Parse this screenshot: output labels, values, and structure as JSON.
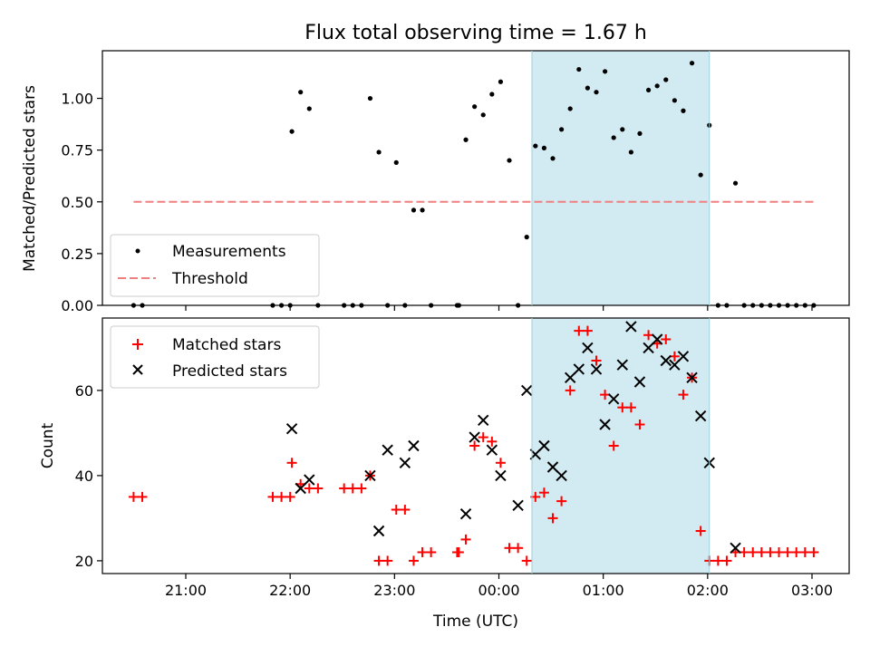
{
  "chart_data": [
    {
      "type": "scatter",
      "title": "Flux total observing time = 1.67 h",
      "xlabel": "",
      "ylabel": "Matched/Predicted stars",
      "ylim": [
        0,
        1.23
      ],
      "yticks": [
        "0.00",
        "0.25",
        "0.50",
        "0.75",
        "1.00"
      ],
      "ytick_values": [
        0,
        0.25,
        0.5,
        0.75,
        1.0
      ],
      "legend_placement": "lower-left",
      "shaded_region": {
        "start": "00:19",
        "end": "02:01",
        "color": "#add8e6"
      },
      "series": [
        {
          "name": "Measurements",
          "marker": "dot",
          "color": "#000000",
          "x": [
            "20:30",
            "20:35",
            "21:50",
            "21:55",
            "22:00",
            "22:01",
            "22:06",
            "22:11",
            "22:16",
            "22:31",
            "22:36",
            "22:41",
            "22:46",
            "22:51",
            "22:56",
            "23:01",
            "23:06",
            "23:11",
            "23:16",
            "23:21",
            "23:36",
            "23:37",
            "23:41",
            "23:46",
            "23:51",
            "23:56",
            "00:01",
            "00:06",
            "00:11",
            "00:16",
            "00:21",
            "00:26",
            "00:31",
            "00:36",
            "00:41",
            "00:46",
            "00:51",
            "00:56",
            "01:01",
            "01:06",
            "01:11",
            "01:16",
            "01:21",
            "01:26",
            "01:31",
            "01:36",
            "01:41",
            "01:46",
            "01:51",
            "01:56",
            "02:01",
            "02:06",
            "02:11",
            "02:16",
            "02:21",
            "02:26",
            "02:31",
            "02:36",
            "02:41",
            "02:46",
            "02:51",
            "02:56",
            "03:01"
          ],
          "y": [
            0,
            0,
            0,
            0,
            0,
            0.84,
            1.03,
            0.95,
            0,
            0,
            0,
            0,
            1.0,
            0.74,
            0,
            0.69,
            0,
            0.46,
            0.46,
            0,
            0,
            0,
            0.8,
            0.96,
            0.92,
            1.02,
            1.08,
            0.7,
            0,
            0.33,
            0.77,
            0.76,
            0.71,
            0.85,
            0.95,
            1.14,
            1.05,
            1.03,
            1.13,
            0.81,
            0.85,
            0.74,
            0.83,
            1.04,
            1.06,
            1.09,
            0.99,
            0.94,
            1.17,
            0.63,
            0.87,
            0,
            0,
            0.59,
            0,
            0,
            0,
            0,
            0,
            0,
            0,
            0,
            0
          ]
        },
        {
          "name": "Threshold",
          "style": "dashed",
          "color": "#f08080",
          "x": [
            "20:30",
            "03:01"
          ],
          "y": [
            0.5,
            0.5
          ]
        }
      ]
    },
    {
      "type": "scatter",
      "title": "",
      "xlabel": "Time (UTC)",
      "ylabel": "Count",
      "ylim": [
        17,
        77
      ],
      "yticks": [
        "20",
        "40",
        "60"
      ],
      "ytick_values": [
        20,
        40,
        60
      ],
      "xticks": [
        "21:00",
        "22:00",
        "23:00",
        "00:00",
        "01:00",
        "02:00",
        "03:00"
      ],
      "legend_placement": "top-left",
      "shaded_region": {
        "start": "00:19",
        "end": "02:01",
        "color": "#add8e6"
      },
      "series": [
        {
          "name": "Matched stars",
          "marker": "plus",
          "color": "#ff0000",
          "x": [
            "20:30",
            "20:35",
            "21:50",
            "21:55",
            "22:00",
            "22:01",
            "22:06",
            "22:11",
            "22:16",
            "22:31",
            "22:36",
            "22:41",
            "22:46",
            "22:51",
            "22:56",
            "23:01",
            "23:06",
            "23:11",
            "23:16",
            "23:21",
            "23:36",
            "23:37",
            "23:41",
            "23:46",
            "23:51",
            "23:56",
            "00:01",
            "00:06",
            "00:11",
            "00:16",
            "00:21",
            "00:26",
            "00:31",
            "00:36",
            "00:41",
            "00:46",
            "00:51",
            "00:56",
            "01:01",
            "01:06",
            "01:11",
            "01:16",
            "01:21",
            "01:26",
            "01:31",
            "01:36",
            "01:41",
            "01:46",
            "01:51",
            "01:56",
            "02:01",
            "02:06",
            "02:11",
            "02:16",
            "02:21",
            "02:26",
            "02:31",
            "02:36",
            "02:41",
            "02:46",
            "02:51",
            "02:56",
            "03:01"
          ],
          "y": [
            35,
            35,
            35,
            35,
            35,
            43,
            38,
            37,
            37,
            37,
            37,
            37,
            40,
            20,
            20,
            32,
            32,
            20,
            22,
            22,
            22,
            22,
            25,
            47,
            49,
            48,
            43,
            23,
            23,
            20,
            35,
            36,
            30,
            34,
            60,
            74,
            74,
            67,
            59,
            47,
            56,
            56,
            52,
            73,
            71,
            72,
            68,
            59,
            63,
            27,
            20,
            20,
            20,
            22,
            22,
            22,
            22,
            22,
            22,
            22,
            22,
            22,
            22
          ]
        },
        {
          "name": "Predicted stars",
          "marker": "x",
          "color": "#000000",
          "x": [
            "22:01",
            "22:06",
            "22:11",
            "22:46",
            "22:51",
            "22:56",
            "23:06",
            "23:11",
            "23:41",
            "23:46",
            "23:51",
            "23:56",
            "00:01",
            "00:11",
            "00:16",
            "00:21",
            "00:26",
            "00:31",
            "00:36",
            "00:41",
            "00:46",
            "00:51",
            "00:56",
            "01:01",
            "01:06",
            "01:11",
            "01:16",
            "01:21",
            "01:26",
            "01:31",
            "01:36",
            "01:41",
            "01:46",
            "01:51",
            "01:56",
            "02:01",
            "02:16"
          ],
          "y": [
            51,
            37,
            39,
            40,
            27,
            46,
            43,
            47,
            31,
            49,
            53,
            46,
            40,
            33,
            60,
            45,
            47,
            42,
            40,
            63,
            65,
            70,
            65,
            52,
            58,
            66,
            75,
            62,
            70,
            72,
            67,
            66,
            68,
            63,
            54,
            43,
            23
          ]
        }
      ]
    }
  ]
}
